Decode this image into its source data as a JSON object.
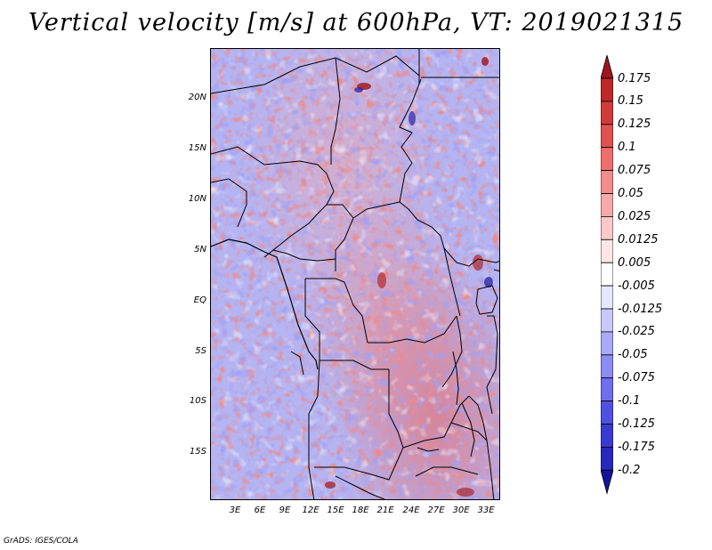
{
  "title": "Vertical velocity [m/s] at 600hPa, VT: 2019021315",
  "credit": "GrADS: IGES/COLA",
  "lat_labels": [
    "20N",
    "15N",
    "10N",
    "5N",
    "EQ",
    "5S",
    "10S",
    "15S"
  ],
  "lon_labels": [
    "3E",
    "6E",
    "9E",
    "12E",
    "15E",
    "18E",
    "21E",
    "24E",
    "27E",
    "30E",
    "33E"
  ],
  "colorbar": {
    "labels": [
      "0.175",
      "0.15",
      "0.125",
      "0.1",
      "0.075",
      "0.05",
      "0.025",
      "0.0125",
      "0.005",
      "-0.005",
      "-0.0125",
      "-0.025",
      "-0.05",
      "-0.075",
      "-0.1",
      "-0.125",
      "-0.175",
      "-0.2"
    ],
    "colors": [
      "#a0141e",
      "#be2828",
      "#d23a3a",
      "#e25050",
      "#ee6e6e",
      "#f48c8c",
      "#f8aaaa",
      "#fcc8c8",
      "#ffe6e6",
      "#ffffff",
      "#e6e6ff",
      "#c8c8fc",
      "#aaaaf8",
      "#8c8cf4",
      "#6e6eee",
      "#5050e2",
      "#3a3ad2",
      "#2828be",
      "#14149e"
    ]
  }
}
